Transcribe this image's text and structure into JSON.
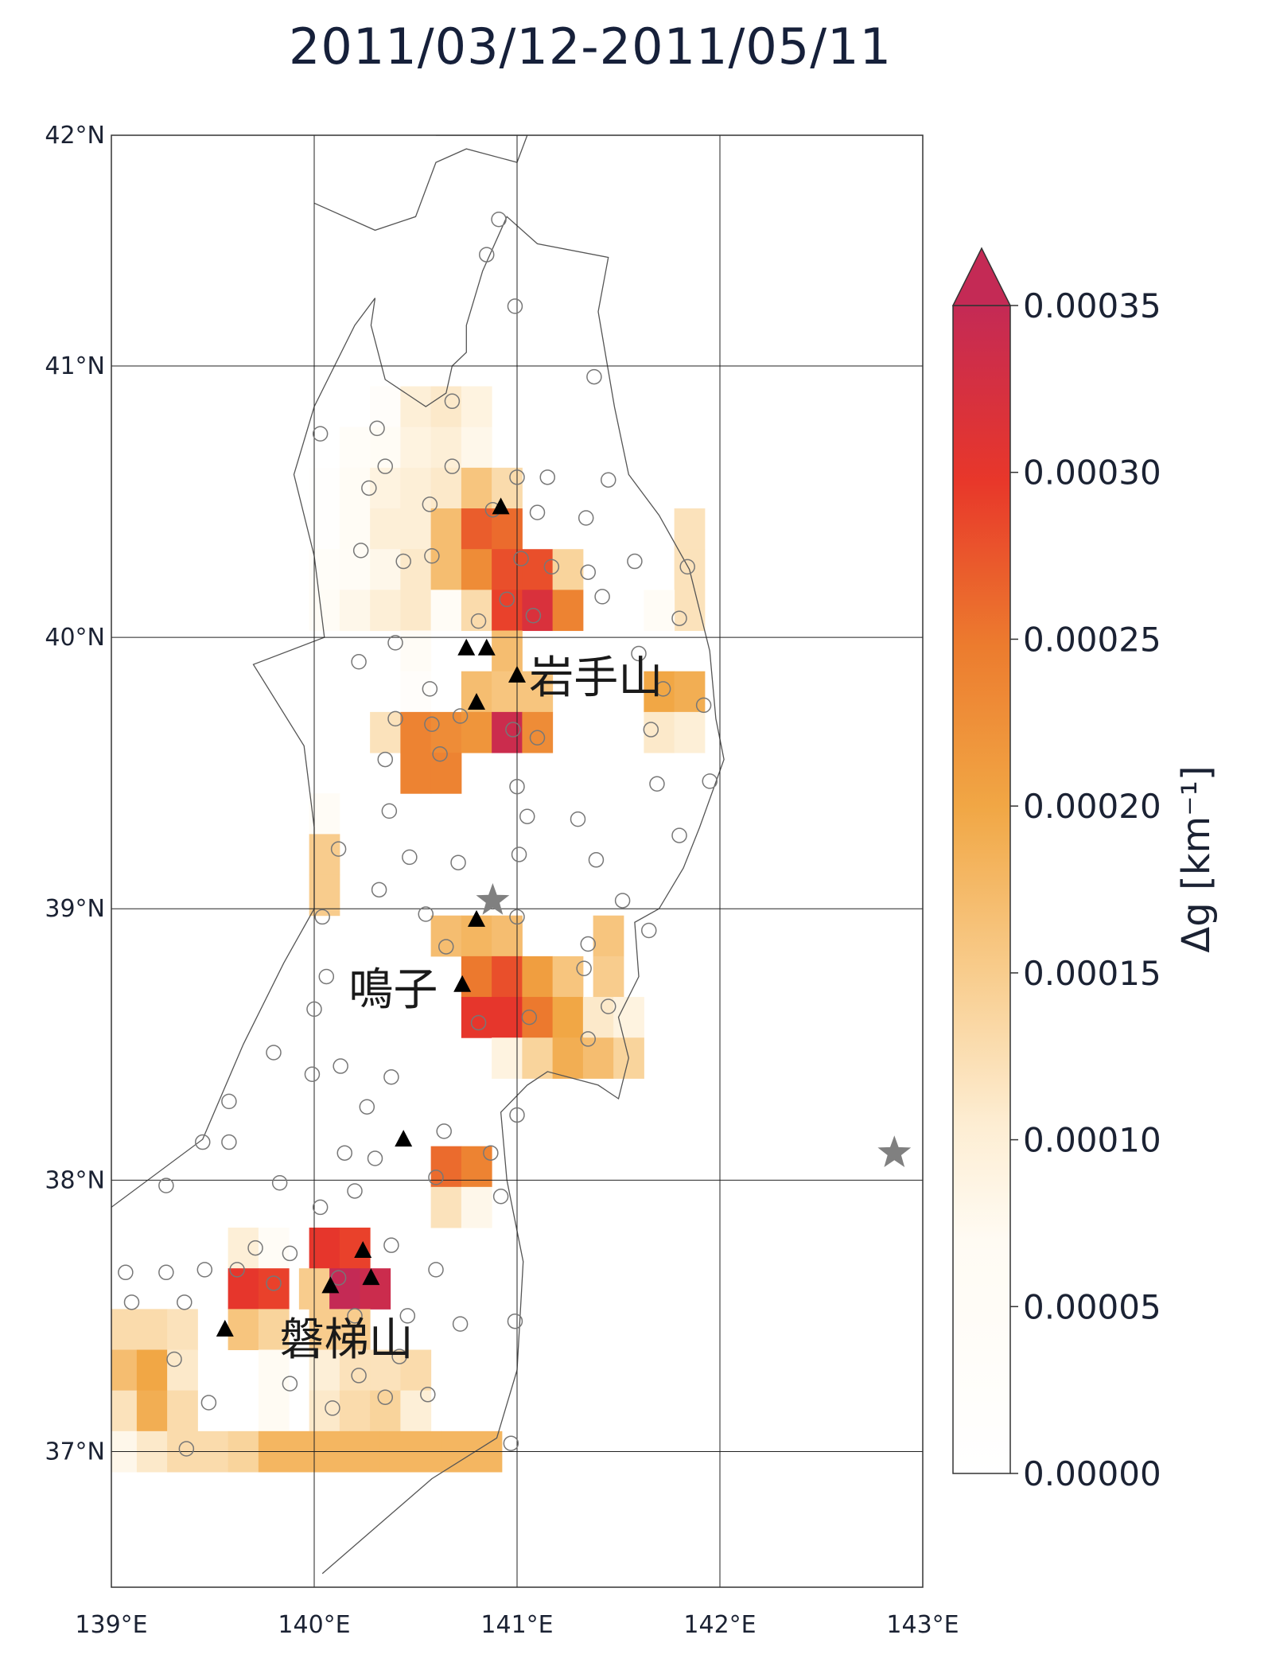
{
  "title": "2011/03/12-2011/05/11",
  "map": {
    "lon_range": [
      139,
      143
    ],
    "lat_range": [
      36.5,
      41.85
    ],
    "lon_ticks": [
      {
        "value": 139,
        "label": "139°E"
      },
      {
        "value": 140,
        "label": "140°E"
      },
      {
        "value": 141,
        "label": "141°E"
      },
      {
        "value": 142,
        "label": "142°E"
      },
      {
        "value": 143,
        "label": "143°E"
      }
    ],
    "lat_ticks": [
      {
        "value": 37,
        "label": "37°N"
      },
      {
        "value": 38,
        "label": "38°N"
      },
      {
        "value": 39,
        "label": "39°N"
      },
      {
        "value": 40,
        "label": "40°N"
      },
      {
        "value": 41,
        "label": "41°N"
      },
      {
        "value": 42,
        "label": "42°N"
      }
    ],
    "gridlines": true,
    "cell_size_deg": 0.15,
    "labels": [
      {
        "text": "岩手山",
        "lon": 141.06,
        "lat": 39.84
      },
      {
        "text": "鳴子",
        "lon": 140.17,
        "lat": 38.69
      },
      {
        "text": "磐梯山",
        "lon": 139.83,
        "lat": 37.4
      }
    ],
    "volcanoes": [
      {
        "lon": 140.92,
        "lat": 40.48
      },
      {
        "lon": 140.75,
        "lat": 39.96
      },
      {
        "lon": 140.85,
        "lat": 39.96
      },
      {
        "lon": 141.0,
        "lat": 39.86
      },
      {
        "lon": 140.8,
        "lat": 39.76
      },
      {
        "lon": 140.8,
        "lat": 38.96
      },
      {
        "lon": 140.73,
        "lat": 38.72
      },
      {
        "lon": 140.44,
        "lat": 38.15
      },
      {
        "lon": 140.24,
        "lat": 37.74
      },
      {
        "lon": 140.28,
        "lat": 37.64
      },
      {
        "lon": 140.08,
        "lat": 37.61
      },
      {
        "lon": 139.56,
        "lat": 37.45
      }
    ],
    "epicenters": [
      {
        "lon": 140.88,
        "lat": 39.03,
        "color": "#808080"
      },
      {
        "lon": 142.86,
        "lat": 38.1,
        "color": "#808080"
      }
    ],
    "stations": [
      [
        140.91,
        41.54
      ],
      [
        140.85,
        41.41
      ],
      [
        140.99,
        41.22
      ],
      [
        141.38,
        40.96
      ],
      [
        140.03,
        40.75
      ],
      [
        140.31,
        40.77
      ],
      [
        140.68,
        40.87
      ],
      [
        140.27,
        40.55
      ],
      [
        140.35,
        40.63
      ],
      [
        140.68,
        40.63
      ],
      [
        140.57,
        40.49
      ],
      [
        141.0,
        40.59
      ],
      [
        141.15,
        40.59
      ],
      [
        141.45,
        40.58
      ],
      [
        140.88,
        40.47
      ],
      [
        141.1,
        40.46
      ],
      [
        140.23,
        40.32
      ],
      [
        140.44,
        40.28
      ],
      [
        140.58,
        40.3
      ],
      [
        141.02,
        40.29
      ],
      [
        141.17,
        40.26
      ],
      [
        141.34,
        40.44
      ],
      [
        141.35,
        40.24
      ],
      [
        141.42,
        40.15
      ],
      [
        140.95,
        40.14
      ],
      [
        141.08,
        40.08
      ],
      [
        140.81,
        40.06
      ],
      [
        140.4,
        39.98
      ],
      [
        140.22,
        39.91
      ],
      [
        140.57,
        39.81
      ],
      [
        140.72,
        39.71
      ],
      [
        140.58,
        39.68
      ],
      [
        140.62,
        39.57
      ],
      [
        140.4,
        39.7
      ],
      [
        140.35,
        39.55
      ],
      [
        140.98,
        39.66
      ],
      [
        141.1,
        39.63
      ],
      [
        141.6,
        39.94
      ],
      [
        141.66,
        39.66
      ],
      [
        141.72,
        39.81
      ],
      [
        141.8,
        40.07
      ],
      [
        141.58,
        40.28
      ],
      [
        141.84,
        40.26
      ],
      [
        141.92,
        39.75
      ],
      [
        141.69,
        39.46
      ],
      [
        141.95,
        39.47
      ],
      [
        141.0,
        39.45
      ],
      [
        141.05,
        39.34
      ],
      [
        141.3,
        39.33
      ],
      [
        141.39,
        39.18
      ],
      [
        141.8,
        39.27
      ],
      [
        140.37,
        39.36
      ],
      [
        140.12,
        39.22
      ],
      [
        140.47,
        39.19
      ],
      [
        140.71,
        39.17
      ],
      [
        141.01,
        39.2
      ],
      [
        140.32,
        39.07
      ],
      [
        141.52,
        39.03
      ],
      [
        140.04,
        38.97
      ],
      [
        140.55,
        38.98
      ],
      [
        141.0,
        38.97
      ],
      [
        141.65,
        38.92
      ],
      [
        140.65,
        38.86
      ],
      [
        141.35,
        38.87
      ],
      [
        141.33,
        38.78
      ],
      [
        140.06,
        38.75
      ],
      [
        141.06,
        38.6
      ],
      [
        140.81,
        38.58
      ],
      [
        141.35,
        38.52
      ],
      [
        141.45,
        38.64
      ],
      [
        140.0,
        38.63
      ],
      [
        139.8,
        38.47
      ],
      [
        140.13,
        38.42
      ],
      [
        140.38,
        38.38
      ],
      [
        139.99,
        38.39
      ],
      [
        140.26,
        38.27
      ],
      [
        139.58,
        38.29
      ],
      [
        141.0,
        38.24
      ],
      [
        140.64,
        38.18
      ],
      [
        139.45,
        38.14
      ],
      [
        139.58,
        38.14
      ],
      [
        140.15,
        38.1
      ],
      [
        140.3,
        38.08
      ],
      [
        140.87,
        38.1
      ],
      [
        139.83,
        37.99
      ],
      [
        140.2,
        37.96
      ],
      [
        139.27,
        37.98
      ],
      [
        140.6,
        38.01
      ],
      [
        140.92,
        37.94
      ],
      [
        140.03,
        37.9
      ],
      [
        139.07,
        37.66
      ],
      [
        139.27,
        37.66
      ],
      [
        139.46,
        37.67
      ],
      [
        139.62,
        37.67
      ],
      [
        139.1,
        37.55
      ],
      [
        139.36,
        37.55
      ],
      [
        139.71,
        37.75
      ],
      [
        139.88,
        37.73
      ],
      [
        140.38,
        37.76
      ],
      [
        140.6,
        37.67
      ],
      [
        140.12,
        37.64
      ],
      [
        140.2,
        37.5
      ],
      [
        140.46,
        37.5
      ],
      [
        140.72,
        37.47
      ],
      [
        140.99,
        37.48
      ],
      [
        139.8,
        37.62
      ],
      [
        139.31,
        37.34
      ],
      [
        140.42,
        37.35
      ],
      [
        139.48,
        37.18
      ],
      [
        139.88,
        37.25
      ],
      [
        140.22,
        37.28
      ],
      [
        140.35,
        37.2
      ],
      [
        140.56,
        37.21
      ],
      [
        140.09,
        37.16
      ],
      [
        139.37,
        37.01
      ],
      [
        140.97,
        37.03
      ]
    ],
    "cells": [
      [
        140.35,
        40.85,
        0.03
      ],
      [
        140.5,
        40.85,
        0.1
      ],
      [
        140.65,
        40.85,
        0.11
      ],
      [
        140.8,
        40.85,
        0.09
      ],
      [
        140.2,
        40.7,
        0.04
      ],
      [
        140.35,
        40.7,
        0.06
      ],
      [
        140.5,
        40.7,
        0.09
      ],
      [
        140.65,
        40.7,
        0.1
      ],
      [
        140.8,
        40.7,
        0.08
      ],
      [
        140.05,
        40.55,
        0.01
      ],
      [
        140.2,
        40.55,
        0.06
      ],
      [
        140.35,
        40.55,
        0.09
      ],
      [
        140.5,
        40.55,
        0.1
      ],
      [
        140.65,
        40.55,
        0.11
      ],
      [
        140.8,
        40.55,
        0.16
      ],
      [
        140.95,
        40.55,
        0.13
      ],
      [
        140.05,
        40.4,
        0.01
      ],
      [
        140.2,
        40.4,
        0.06
      ],
      [
        140.35,
        40.4,
        0.1
      ],
      [
        140.5,
        40.4,
        0.1
      ],
      [
        140.65,
        40.4,
        0.17
      ],
      [
        140.8,
        40.4,
        0.27
      ],
      [
        140.95,
        40.4,
        0.26
      ],
      [
        140.05,
        40.25,
        0.04
      ],
      [
        140.2,
        40.25,
        0.05
      ],
      [
        140.35,
        40.25,
        0.08
      ],
      [
        140.5,
        40.25,
        0.11
      ],
      [
        140.65,
        40.25,
        0.17
      ],
      [
        140.8,
        40.25,
        0.23
      ],
      [
        140.95,
        40.25,
        0.28
      ],
      [
        141.1,
        40.25,
        0.28
      ],
      [
        141.25,
        40.25,
        0.14
      ],
      [
        140.05,
        40.1,
        0.05
      ],
      [
        140.2,
        40.1,
        0.08
      ],
      [
        140.35,
        40.1,
        0.1
      ],
      [
        140.5,
        40.1,
        0.11
      ],
      [
        140.65,
        40.1,
        0.05
      ],
      [
        140.8,
        40.1,
        0.13
      ],
      [
        140.95,
        40.1,
        0.29
      ],
      [
        141.1,
        40.1,
        0.32
      ],
      [
        141.25,
        40.1,
        0.24
      ],
      [
        141.85,
        40.4,
        0.12
      ],
      [
        141.85,
        40.25,
        0.12
      ],
      [
        141.85,
        40.1,
        0.12
      ],
      [
        141.7,
        40.1,
        0.05
      ],
      [
        140.5,
        39.95,
        0.05
      ],
      [
        140.95,
        39.95,
        0.17
      ],
      [
        140.5,
        39.8,
        0.03
      ],
      [
        140.8,
        39.8,
        0.17
      ],
      [
        140.95,
        39.8,
        0.16
      ],
      [
        141.1,
        39.8,
        0.16
      ],
      [
        141.7,
        39.8,
        0.2
      ],
      [
        141.85,
        39.8,
        0.19
      ],
      [
        140.35,
        39.65,
        0.12
      ],
      [
        140.5,
        39.65,
        0.24
      ],
      [
        140.65,
        39.65,
        0.23
      ],
      [
        140.8,
        39.65,
        0.22
      ],
      [
        140.95,
        39.65,
        0.34
      ],
      [
        141.1,
        39.65,
        0.23
      ],
      [
        141.7,
        39.65,
        0.11
      ],
      [
        141.85,
        39.65,
        0.1
      ],
      [
        140.5,
        39.5,
        0.24
      ],
      [
        140.65,
        39.5,
        0.24
      ],
      [
        140.05,
        39.35,
        0.05
      ],
      [
        140.05,
        39.2,
        0.15
      ],
      [
        140.05,
        39.05,
        0.15
      ],
      [
        140.65,
        38.9,
        0.17
      ],
      [
        140.8,
        38.9,
        0.18
      ],
      [
        140.95,
        38.9,
        0.17
      ],
      [
        141.45,
        38.9,
        0.16
      ],
      [
        140.8,
        38.75,
        0.25
      ],
      [
        140.95,
        38.75,
        0.28
      ],
      [
        141.1,
        38.75,
        0.21
      ],
      [
        141.25,
        38.75,
        0.16
      ],
      [
        141.45,
        38.75,
        0.15
      ],
      [
        140.8,
        38.6,
        0.3
      ],
      [
        140.95,
        38.6,
        0.3
      ],
      [
        141.1,
        38.6,
        0.25
      ],
      [
        141.25,
        38.6,
        0.2
      ],
      [
        141.4,
        38.6,
        0.11
      ],
      [
        141.55,
        38.6,
        0.09
      ],
      [
        140.95,
        38.45,
        0.09
      ],
      [
        141.1,
        38.45,
        0.14
      ],
      [
        141.25,
        38.45,
        0.19
      ],
      [
        141.4,
        38.45,
        0.17
      ],
      [
        141.55,
        38.45,
        0.14
      ],
      [
        140.65,
        38.05,
        0.26
      ],
      [
        140.8,
        38.05,
        0.24
      ],
      [
        140.65,
        37.9,
        0.12
      ],
      [
        140.8,
        37.9,
        0.08
      ],
      [
        139.65,
        37.75,
        0.1
      ],
      [
        139.8,
        37.75,
        0.05
      ],
      [
        140.05,
        37.75,
        0.3
      ],
      [
        140.2,
        37.75,
        0.29
      ],
      [
        139.65,
        37.6,
        0.3
      ],
      [
        139.8,
        37.6,
        0.29
      ],
      [
        140.0,
        37.6,
        0.15
      ],
      [
        140.15,
        37.6,
        0.35
      ],
      [
        140.3,
        37.6,
        0.34
      ],
      [
        139.05,
        37.45,
        0.13
      ],
      [
        139.2,
        37.45,
        0.13
      ],
      [
        139.35,
        37.45,
        0.12
      ],
      [
        139.65,
        37.45,
        0.16
      ],
      [
        139.8,
        37.45,
        0.14
      ],
      [
        140.05,
        37.45,
        0.15
      ],
      [
        140.2,
        37.45,
        0.15
      ],
      [
        139.05,
        37.3,
        0.17
      ],
      [
        139.2,
        37.3,
        0.2
      ],
      [
        139.35,
        37.3,
        0.11
      ],
      [
        139.8,
        37.3,
        0.07
      ],
      [
        140.05,
        37.3,
        0.1
      ],
      [
        140.2,
        37.3,
        0.12
      ],
      [
        140.35,
        37.3,
        0.12
      ],
      [
        140.5,
        37.3,
        0.13
      ],
      [
        139.05,
        37.15,
        0.12
      ],
      [
        139.2,
        37.15,
        0.19
      ],
      [
        139.35,
        37.15,
        0.13
      ],
      [
        139.8,
        37.15,
        0.07
      ],
      [
        140.05,
        37.15,
        0.11
      ],
      [
        140.2,
        37.15,
        0.13
      ],
      [
        140.35,
        37.15,
        0.14
      ],
      [
        140.5,
        37.15,
        0.1
      ],
      [
        139.05,
        37.0,
        0.08
      ],
      [
        139.2,
        37.0,
        0.11
      ],
      [
        139.35,
        37.0,
        0.13
      ],
      [
        139.5,
        37.0,
        0.13
      ],
      [
        139.65,
        37.0,
        0.14
      ],
      [
        139.8,
        37.0,
        0.18
      ],
      [
        139.95,
        37.0,
        0.18
      ],
      [
        140.1,
        37.0,
        0.18
      ],
      [
        140.25,
        37.0,
        0.18
      ],
      [
        140.4,
        37.0,
        0.18
      ],
      [
        140.55,
        37.0,
        0.18
      ],
      [
        140.7,
        37.0,
        0.18
      ],
      [
        140.85,
        37.0,
        0.18
      ]
    ],
    "coast_lonlat": [
      [
        140.04,
        36.55
      ],
      [
        140.58,
        36.9
      ],
      [
        140.9,
        37.05
      ],
      [
        141.0,
        37.3
      ],
      [
        141.03,
        37.7
      ],
      [
        140.95,
        38.0
      ],
      [
        140.92,
        38.25
      ],
      [
        141.05,
        38.35
      ],
      [
        141.15,
        38.4
      ],
      [
        141.4,
        38.35
      ],
      [
        141.5,
        38.3
      ],
      [
        141.55,
        38.45
      ],
      [
        141.5,
        38.6
      ],
      [
        141.6,
        38.75
      ],
      [
        141.58,
        38.95
      ],
      [
        141.7,
        39.0
      ],
      [
        141.82,
        39.15
      ],
      [
        141.9,
        39.3
      ],
      [
        142.02,
        39.55
      ],
      [
        141.98,
        39.7
      ],
      [
        141.95,
        39.95
      ],
      [
        141.85,
        40.25
      ],
      [
        141.7,
        40.45
      ],
      [
        141.55,
        40.6
      ],
      [
        141.48,
        40.85
      ],
      [
        141.4,
        41.2
      ],
      [
        141.45,
        41.4
      ],
      [
        141.1,
        41.45
      ],
      [
        140.95,
        41.55
      ],
      [
        140.83,
        41.35
      ],
      [
        140.75,
        41.15
      ],
      [
        140.75,
        41.05
      ],
      [
        140.68,
        41.0
      ],
      [
        140.65,
        40.9
      ],
      [
        140.55,
        40.85
      ],
      [
        140.35,
        40.95
      ],
      [
        140.28,
        41.15
      ],
      [
        140.3,
        41.25
      ],
      [
        140.2,
        41.15
      ],
      [
        140.0,
        40.85
      ],
      [
        139.9,
        40.6
      ],
      [
        140.0,
        40.3
      ],
      [
        140.05,
        40.0
      ],
      [
        139.7,
        39.9
      ],
      [
        139.95,
        39.6
      ],
      [
        140.0,
        39.3
      ],
      [
        140.0,
        39.0
      ],
      [
        139.85,
        38.8
      ],
      [
        139.65,
        38.5
      ],
      [
        139.45,
        38.15
      ],
      [
        139.0,
        37.9
      ]
    ],
    "hokkaido_lonlat": [
      [
        140.0,
        41.6
      ],
      [
        140.3,
        41.5
      ],
      [
        140.5,
        41.55
      ],
      [
        140.6,
        41.75
      ],
      [
        140.75,
        41.8
      ],
      [
        141.0,
        41.75
      ],
      [
        141.05,
        41.85
      ],
      [
        140.9,
        41.85
      ],
      [
        140.8,
        41.85
      ],
      [
        140.6,
        41.85
      ]
    ]
  },
  "colorbar": {
    "label": "Δg [km⁻¹]",
    "min": 0,
    "max": 0.00035,
    "extend": "max",
    "ticks": [
      {
        "value": 0.0,
        "label": "0.00000"
      },
      {
        "value": 5e-05,
        "label": "0.00005"
      },
      {
        "value": 0.0001,
        "label": "0.00010"
      },
      {
        "value": 0.00015,
        "label": "0.00015"
      },
      {
        "value": 0.0002,
        "label": "0.00020"
      },
      {
        "value": 0.00025,
        "label": "0.00025"
      },
      {
        "value": 0.0003,
        "label": "0.00030"
      },
      {
        "value": 0.00035,
        "label": "0.00035"
      }
    ],
    "colors": [
      "#ffffff",
      "#fff7e6",
      "#fbe0b8",
      "#f6c07a",
      "#f1a43e",
      "#ec7a2c",
      "#e83e24",
      "#c0265a"
    ]
  },
  "chart_data": {
    "type": "heatmap",
    "title": "2011/03/12-2011/05/11",
    "xlabel": "",
    "ylabel": "",
    "x_ticks": [
      "139°E",
      "140°E",
      "141°E",
      "142°E",
      "143°E"
    ],
    "y_ticks": [
      "37°N",
      "38°N",
      "39°N",
      "40°N",
      "41°N",
      "42°N"
    ],
    "colorbar_label": "Δg [km⁻¹]",
    "colorbar_range": [
      0,
      0.00035
    ],
    "value_scale": "1e-3 km⁻¹ (cell values × 0.001)",
    "annotations": [
      "岩手山",
      "鳴子",
      "磐梯山"
    ]
  }
}
